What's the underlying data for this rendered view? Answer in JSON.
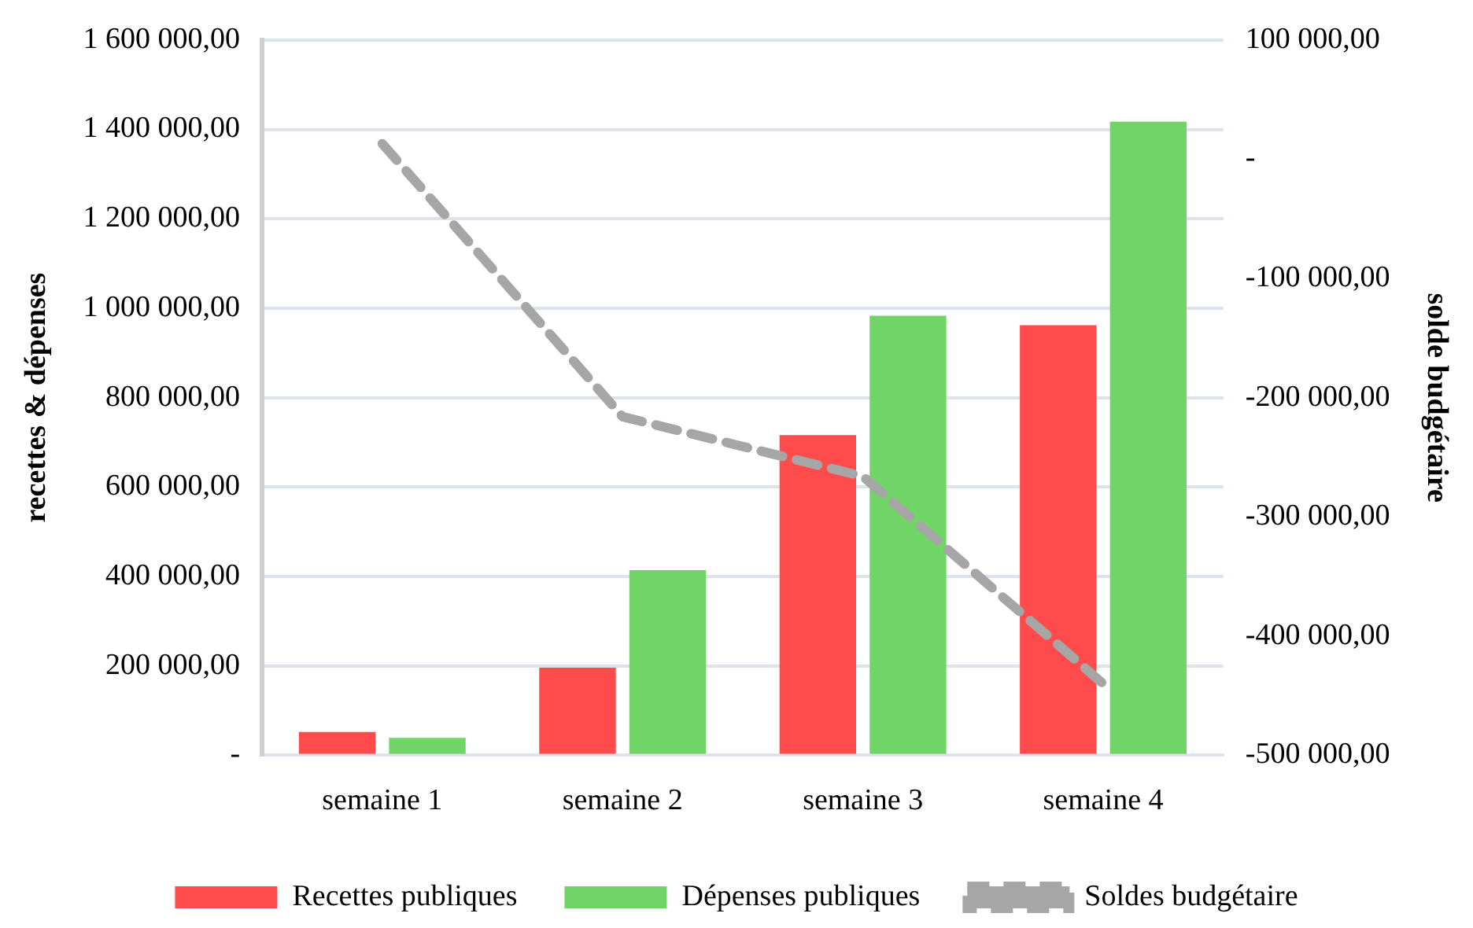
{
  "chart_data": {
    "type": "bar",
    "categories": [
      "semaine 1",
      "semaine 2",
      "semaine 3",
      "semaine 4"
    ],
    "ylabel": "recettes & dépenses",
    "y2label": "solde budgétaire",
    "series": [
      {
        "name": "Recettes publiques",
        "color": "#ff4b4b",
        "values": [
          52000,
          196000,
          716000,
          962000
        ]
      },
      {
        "name": "Dépenses publiques",
        "color": "#70d466",
        "values": [
          39000,
          414000,
          983000,
          1417000
        ]
      },
      {
        "name": "Soldes budgétaire",
        "type": "line",
        "axis": "y2",
        "color": "#a6a6a6",
        "line_style": "dashed",
        "marker": "none",
        "values": [
          13000,
          -216000,
          -266000,
          -440000
        ]
      }
    ],
    "ylim": [
      0,
      1600000
    ],
    "yticks": [
      {
        "value": 0,
        "label": "-"
      },
      {
        "value": 200000,
        "label": "200 000,00"
      },
      {
        "value": 400000,
        "label": "400 000,00"
      },
      {
        "value": 600000,
        "label": "600 000,00"
      },
      {
        "value": 800000,
        "label": "800 000,00"
      },
      {
        "value": 1000000,
        "label": "1 000 000,00"
      },
      {
        "value": 1200000,
        "label": "1 200 000,00"
      },
      {
        "value": 1400000,
        "label": "1 400 000,00"
      },
      {
        "value": 1600000,
        "label": "1 600 000,00"
      }
    ],
    "y2lim": [
      -500000,
      100000
    ],
    "y2ticks": [
      {
        "value": -500000,
        "label": "-500 000,00"
      },
      {
        "value": -400000,
        "label": "-400 000,00"
      },
      {
        "value": -300000,
        "label": "-300 000,00"
      },
      {
        "value": -200000,
        "label": "-200 000,00"
      },
      {
        "value": -100000,
        "label": "-100 000,00"
      },
      {
        "value": 0,
        "label": "-"
      },
      {
        "value": 100000,
        "label": "100 000,00"
      }
    ],
    "grid": "y",
    "legend": "bottom"
  }
}
